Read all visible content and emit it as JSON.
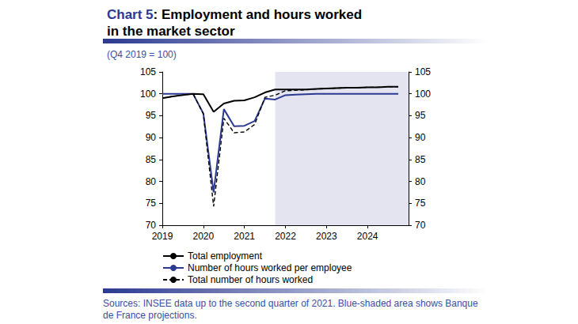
{
  "chart_data": {
    "type": "line",
    "title": "Chart 5: Employment and hours worked in the market sector",
    "subtitle": "(Q4 2019 = 100)",
    "source": "Sources: INSEE data up to the second quarter of 2021. Blue-shaded area shows Banque de France projections.",
    "x": [
      2019,
      2019.25,
      2019.5,
      2019.75,
      2020,
      2020.25,
      2020.5,
      2020.75,
      2021,
      2021.25,
      2021.5,
      2021.75,
      2022,
      2022.25,
      2022.5,
      2022.75,
      2023,
      2023.25,
      2023.5,
      2023.75,
      2024,
      2024.25,
      2024.5,
      2024.75
    ],
    "xlim": [
      2019,
      2025
    ],
    "xticks": [
      2019,
      2020,
      2021,
      2022,
      2023,
      2024
    ],
    "ylim": [
      70,
      105
    ],
    "yticks": [
      70,
      75,
      80,
      85,
      90,
      95,
      100,
      105
    ],
    "y2lim": [
      70,
      105
    ],
    "y2ticks": [
      70,
      75,
      80,
      85,
      90,
      95,
      100,
      105
    ],
    "grid": false,
    "legend": "bottom",
    "shaded_area": {
      "from": 2021.75,
      "to": 2025,
      "color": "#e4e4f0"
    },
    "series": [
      {
        "name": "Total employment",
        "color": "#000000",
        "line_style": "solid",
        "values": [
          99.0,
          99.4,
          99.7,
          100.0,
          99.9,
          95.9,
          97.8,
          98.4,
          98.5,
          99.2,
          100.3,
          101.0,
          101.0,
          101.0,
          101.0,
          101.1,
          101.2,
          101.3,
          101.4,
          101.4,
          101.5,
          101.5,
          101.6,
          101.6
        ]
      },
      {
        "name": "Number of hours worked per employee",
        "color": "#2b3990",
        "line_style": "solid",
        "values": [
          100.0,
          100.0,
          100.0,
          100.0,
          95.5,
          77.5,
          96.5,
          92.6,
          92.7,
          93.8,
          98.9,
          98.7,
          99.7,
          99.8,
          99.9,
          100.0,
          100.0,
          100.0,
          100.0,
          100.0,
          100.0,
          100.0,
          100.0,
          100.0
        ]
      },
      {
        "name": "Total number of hours worked",
        "color": "#000000",
        "line_style": "dashed",
        "values": [
          99.0,
          99.4,
          99.7,
          100.0,
          95.4,
          74.3,
          94.4,
          91.1,
          91.3,
          93.0,
          99.2,
          99.7,
          100.7,
          100.8,
          100.9,
          101.1,
          101.2,
          101.3,
          101.4,
          101.4,
          101.5,
          101.5,
          101.6,
          101.6
        ]
      }
    ]
  }
}
